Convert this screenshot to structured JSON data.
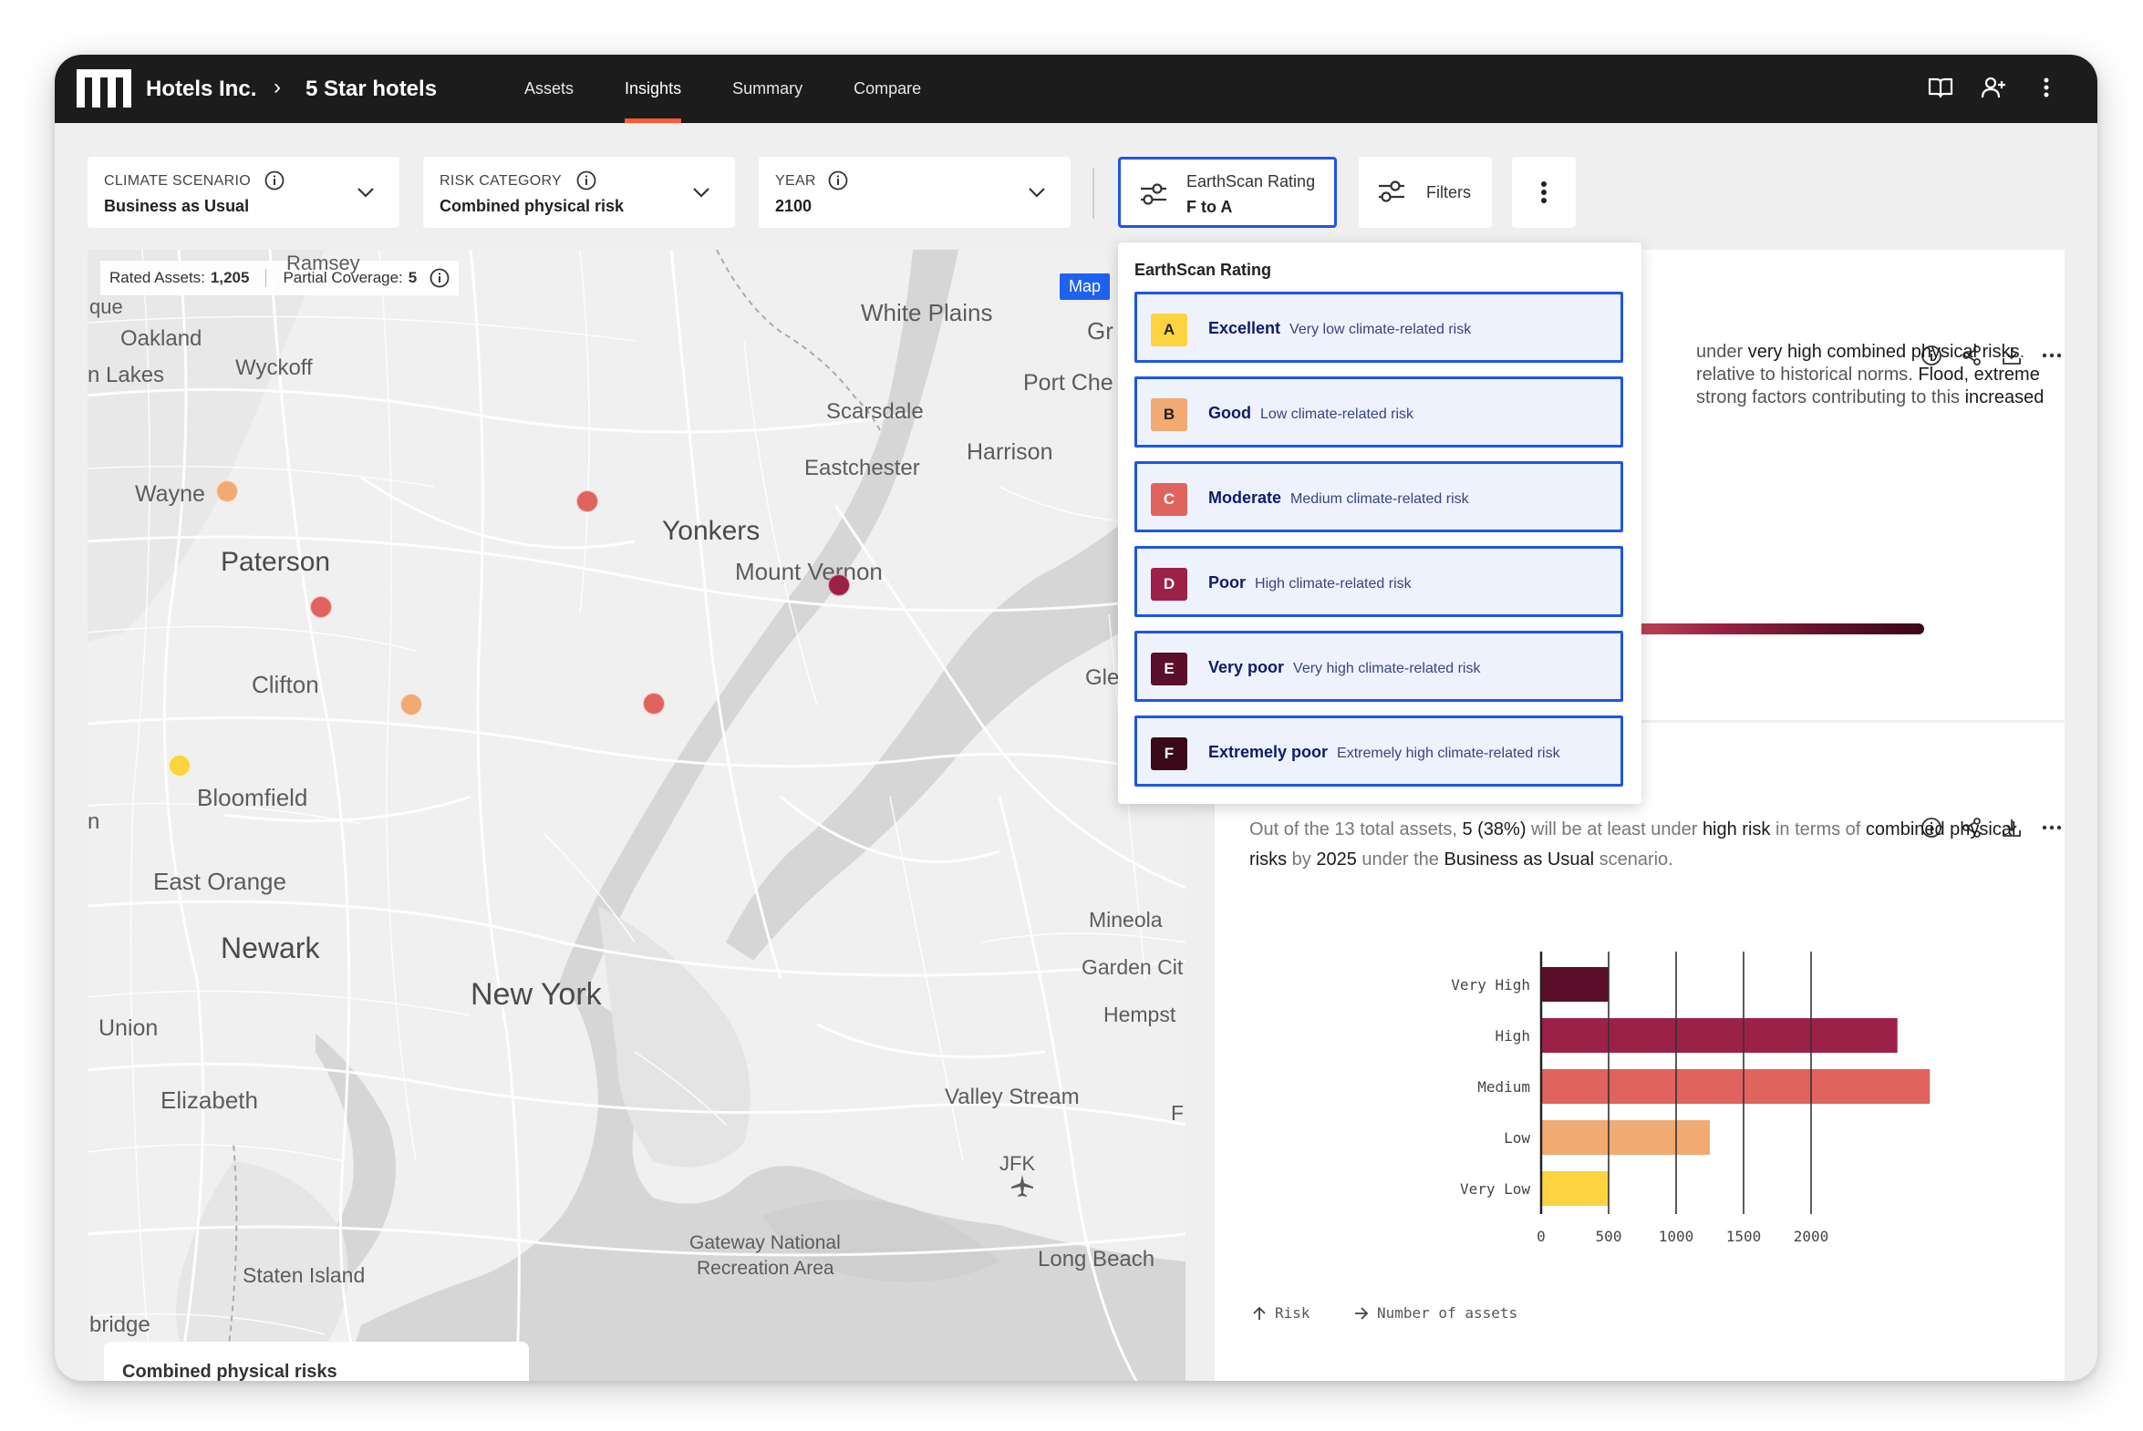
{
  "app": {
    "brand": "Hotels Inc.",
    "portfolio": "5 Star hotels",
    "tabs": [
      {
        "label": "Assets",
        "active": false
      },
      {
        "label": "Insights",
        "active": true
      },
      {
        "label": "Summary",
        "active": false
      },
      {
        "label": "Compare",
        "active": false
      }
    ],
    "icons": [
      "book-icon",
      "add-user-icon",
      "more-vertical-icon"
    ]
  },
  "filters": {
    "climate_scenario": {
      "label": "CLIMATE SCENARIO",
      "value": "Business as Usual"
    },
    "risk_category": {
      "label": "RISK CATEGORY",
      "value": "Combined physical risk"
    },
    "year": {
      "label": "YEAR",
      "value": "2100"
    },
    "rating": {
      "label": "EarthScan Rating",
      "value": "F to A"
    },
    "filters_label": "Filters"
  },
  "dropdown": {
    "title": "EarthScan Rating",
    "options": [
      {
        "grade": "A",
        "name": "Excellent",
        "desc": "Very low climate-related risk",
        "color": "#fdd33f",
        "text_color": "#222222"
      },
      {
        "grade": "B",
        "name": "Good",
        "desc": "Low climate-related risk",
        "color": "#f1aa72",
        "text_color": "#222222"
      },
      {
        "grade": "C",
        "name": "Moderate",
        "desc": "Medium climate-related risk",
        "color": "#e0635e",
        "text_color": "#ffffff"
      },
      {
        "grade": "D",
        "name": "Poor",
        "desc": "High climate-related risk",
        "color": "#9c2148",
        "text_color": "#ffffff"
      },
      {
        "grade": "E",
        "name": "Very poor",
        "desc": "Very high climate-related risk",
        "color": "#5b0f2a",
        "text_color": "#ffffff"
      },
      {
        "grade": "F",
        "name": "Extremely poor",
        "desc": "Extremely high climate-related risk",
        "color": "#3a0a1a",
        "text_color": "#ffffff"
      }
    ]
  },
  "map": {
    "rated_assets_label": "Rated Assets:",
    "rated_assets_value": "1,205",
    "partial_coverage_label": "Partial Coverage:",
    "partial_coverage_value": "5",
    "badge": "Map",
    "legend_title": "Combined physical risks",
    "places": {
      "ramsey": "Ramsey",
      "que": "que",
      "oakland": "Oakland",
      "wyckoff": "Wyckoff",
      "lakes": "n Lakes",
      "wayne": "Wayne",
      "paterson": "Paterson",
      "clifton": "Clifton",
      "bloomfield": "Bloomfield",
      "n": "n",
      "east_orange": "East Orange",
      "newark": "Newark",
      "union": "Union",
      "elizabeth": "Elizabeth",
      "staten_island": "Staten Island",
      "bridge": "bridge",
      "white_plains": "White Plains",
      "gr": "Gr",
      "port_che": "Port Che",
      "scarsdale": "Scarsdale",
      "harrison": "Harrison",
      "eastchester": "Eastchester",
      "yonkers": "Yonkers",
      "mount_vernon": "Mount Vernon",
      "gle": "Gle",
      "new_york": "New York",
      "mineola": "Mineola",
      "garden_cit": "Garden Cit",
      "hempst": "Hempst",
      "valley_stream": "Valley Stream",
      "f": "F",
      "jfk": "JFK",
      "gateway_1": "Gateway National",
      "gateway_2": "Recreation Area",
      "long_beach": "Long Beach"
    },
    "markers": [
      {
        "risk": "B",
        "color": "#f1aa72"
      },
      {
        "risk": "C",
        "color": "#e0635e"
      },
      {
        "risk": "C",
        "color": "#e0635e"
      },
      {
        "risk": "B",
        "color": "#f1aa72"
      },
      {
        "risk": "A",
        "color": "#fdd33f"
      },
      {
        "risk": "C",
        "color": "#e0635e"
      },
      {
        "risk": "D",
        "color": "#9c2148"
      }
    ]
  },
  "card1": {
    "lines": [
      {
        "plain1": "under ",
        "dark1": "very high combined physical risks",
        "plain2": ".",
        "dark2": ""
      },
      {
        "plain1": "relative to historical norms. ",
        "dark1": "Flood, extreme",
        "plain2": "",
        "dark2": ""
      },
      {
        "plain1": "strong factors contributing to this ",
        "dark1": "increased",
        "plain2": "",
        "dark2": ""
      }
    ]
  },
  "card2": {
    "summary": {
      "p1": "Out of the 13 total assets, ",
      "d1": "5 (38%)",
      "p2": " will be at least under ",
      "d2": "high risk",
      "p3": " in terms of ",
      "d3": "combined physical risks",
      "p4": " by ",
      "d4": "2025",
      "p5": " under the ",
      "d5": "Business as Usual",
      "p6": " scenario."
    },
    "footer_risk": "Risk",
    "footer_assets": "Number of assets"
  },
  "chart_data": {
    "type": "bar",
    "orientation": "horizontal",
    "categories": [
      "Very High",
      "High",
      "Medium",
      "Low",
      "Very Low"
    ],
    "values": [
      500,
      2640,
      2880,
      1250,
      500
    ],
    "colors": [
      "#5b0f2a",
      "#9c2148",
      "#e0635e",
      "#f1aa72",
      "#fdd33f"
    ],
    "xticks": [
      0,
      500,
      1000,
      1500,
      2000
    ],
    "xlim": [
      0,
      3000
    ],
    "xlabel": "Number of assets",
    "ylabel": "Risk",
    "grid": true
  }
}
